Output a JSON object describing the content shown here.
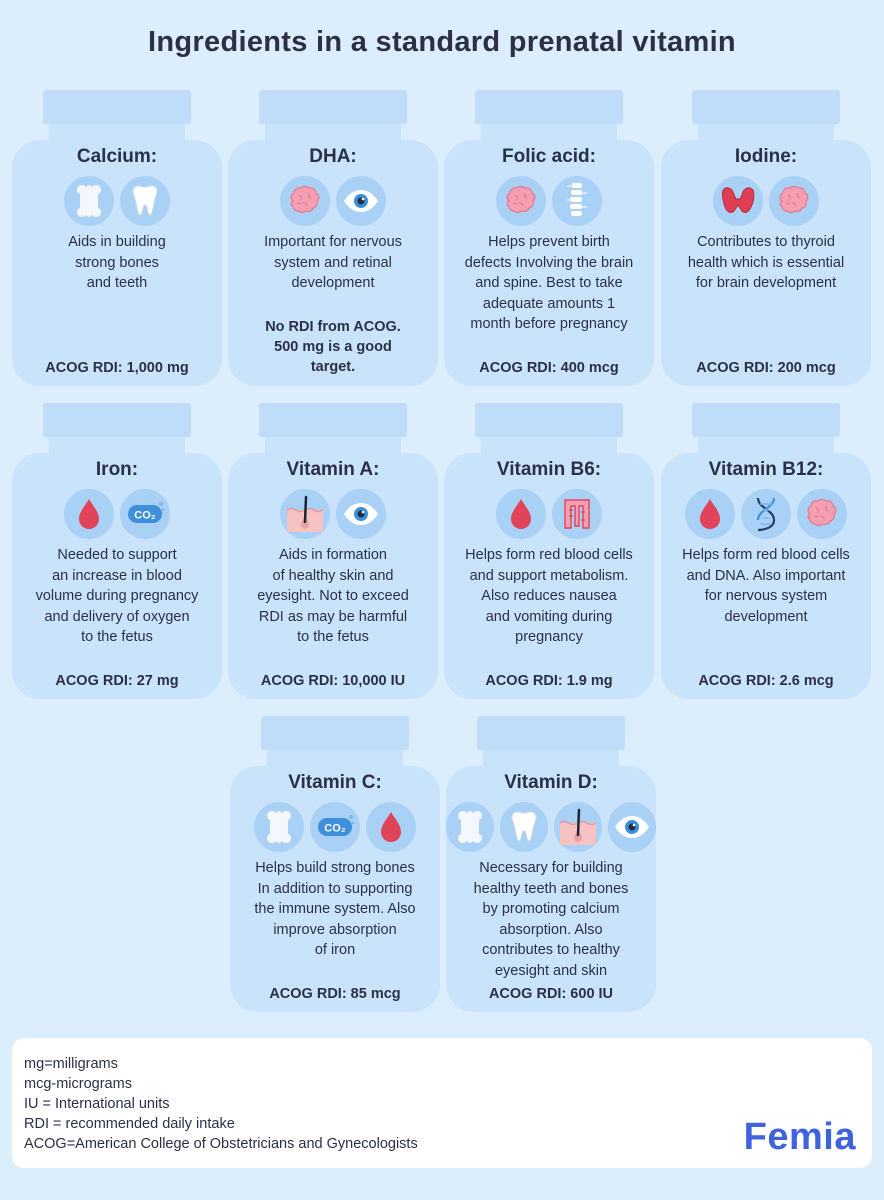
{
  "title": "Ingredients in a standard prenatal vitamin",
  "vitamins": [
    {
      "name": "Calcium:",
      "icons": [
        "bone-icon",
        "tooth-icon"
      ],
      "desc": "Aids in building\nstrong bones\nand teeth",
      "note": "",
      "rdi": "ACOG RDI: 1,000 mg"
    },
    {
      "name": "DHA:",
      "icons": [
        "brain-icon",
        "eye-icon"
      ],
      "desc": "Important for nervous\nsystem and retinal\ndevelopment",
      "note": "No RDI from ACOG.\n500 mg is a good\ntarget.",
      "rdi": ""
    },
    {
      "name": "Folic acid:",
      "icons": [
        "brain-icon",
        "spine-icon"
      ],
      "desc": "Helps prevent birth\ndefects Involving the brain\nand spine. Best to take\nadequate amounts 1\nmonth before pregnancy",
      "note": "",
      "rdi": "ACOG RDI: 400 mcg"
    },
    {
      "name": "Iodine:",
      "icons": [
        "thyroid-icon",
        "brain-icon"
      ],
      "desc": "Contributes to thyroid\nhealth which is essential\nfor brain development",
      "note": "",
      "rdi": "ACOG RDI: 200 mcg"
    },
    {
      "name": "Iron:",
      "icons": [
        "blood-drop-icon",
        "co2-icon"
      ],
      "desc": "Needed to support\nan increase in blood\nvolume during pregnancy\nand delivery of oxygen\nto the fetus",
      "note": "",
      "rdi": "ACOG RDI: 27 mg"
    },
    {
      "name": "Vitamin A:",
      "icons": [
        "skin-icon",
        "eye-icon"
      ],
      "desc": "Aids in formation\nof healthy skin and\neyesight. Not to exceed\nRDI as may be harmful\nto the fetus",
      "note": "",
      "rdi": "ACOG RDI: 10,000 IU"
    },
    {
      "name": "Vitamin B6:",
      "icons": [
        "blood-drop-icon",
        "intestine-icon"
      ],
      "desc": "Helps form red blood cells\nand support metabolism.\nAlso reduces nausea\nand vomiting during\npregnancy",
      "note": "",
      "rdi": "ACOG RDI: 1.9 mg"
    },
    {
      "name": "Vitamin B12:",
      "icons": [
        "blood-drop-icon",
        "dna-icon",
        "brain-icon"
      ],
      "desc": "Helps form red blood cells\nand DNA. Also important\nfor nervous system\ndevelopment",
      "note": "",
      "rdi": "ACOG RDI: 2.6 mcg"
    },
    {
      "name": "Vitamin C:",
      "icons": [
        "bone-icon",
        "co2-icon",
        "blood-drop-icon"
      ],
      "desc": "Helps build strong bones\nIn addition to supporting\nthe immune system. Also\nimprove absorption\nof iron",
      "note": "",
      "rdi": "ACOG RDI: 85 mcg"
    },
    {
      "name": "Vitamin D:",
      "icons": [
        "bone-icon",
        "tooth-icon",
        "skin-icon",
        "eye-icon"
      ],
      "desc": "Necessary for building\nhealthy teeth and bones\nby promoting calcium\nabsorption. Also\ncontributes to healthy\neyesight and skin",
      "note": "",
      "rdi": "ACOG RDI: 600 IU"
    }
  ],
  "legend": [
    "mg=milligrams",
    "mcg-micrograms",
    "IU = International units",
    "RDI = recommended daily intake",
    "ACOG=American College of Obstetricians and Gynecologists"
  ],
  "logo": "Femia",
  "colors": {
    "bottle": "#c9e3fa",
    "cap": "#bfddf8",
    "icon_bg": "#a9d0f5",
    "brand": "#3e63dd",
    "blood": "#e0445a"
  }
}
